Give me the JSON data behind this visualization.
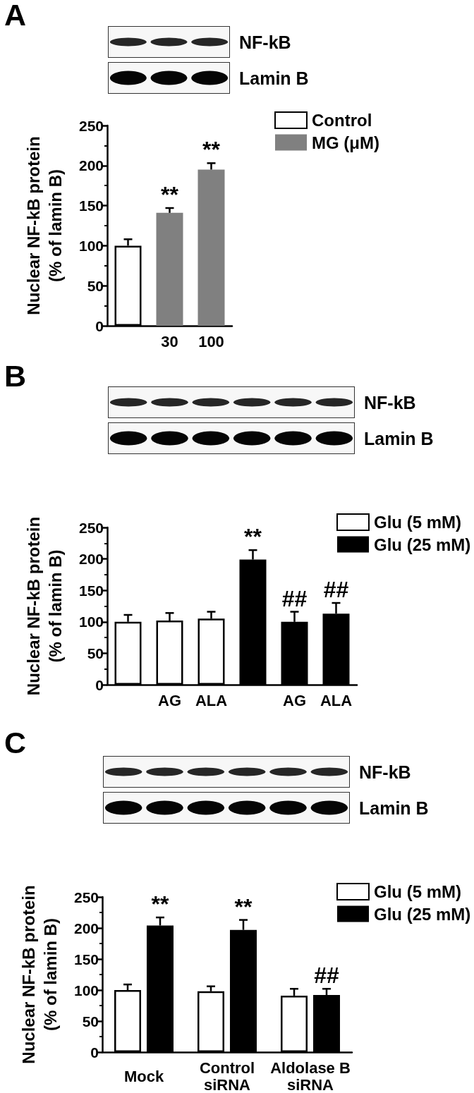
{
  "chart_data": [
    {
      "type": "bar",
      "title": "A",
      "annotations": [
        "NF-kB",
        "Lamin B"
      ],
      "categories": [
        null,
        "30",
        "100"
      ],
      "series": [
        {
          "name": "Control",
          "color": "#ffffff",
          "values": [
            100,
            null,
            null
          ],
          "errors": [
            [
              100,
              108
            ],
            null,
            null
          ]
        },
        {
          "name": "MG (μM)",
          "color": "#808080",
          "values": [
            null,
            141,
            195
          ],
          "errors": [
            null,
            [
              141,
              147
            ],
            [
              195,
              203
            ]
          ],
          "value_labels": [
            null,
            "**",
            "**"
          ]
        }
      ],
      "ylabel": "Nuclear NF-kB protein (% of lamin B)",
      "ylim": [
        0,
        250
      ],
      "yticks": [
        0,
        {
          "value": 25,
          "label": null
        },
        50,
        {
          "value": 75,
          "label": null
        },
        100,
        {
          "value": 125,
          "label": null
        },
        150,
        {
          "value": 175,
          "label": null
        },
        200,
        {
          "value": 225,
          "label": null
        },
        250
      ],
      "legend": "top right",
      "grid": false
    },
    {
      "type": "bar",
      "title": "B",
      "annotations": [
        "NF-kB",
        "Lamin B"
      ],
      "categories": [
        null,
        "AG",
        "ALA",
        null,
        "AG",
        "ALA"
      ],
      "series": [
        {
          "name": "Glu (5 mM)",
          "color": "#ffffff",
          "values": [
            100,
            102,
            105,
            null,
            null,
            null
          ],
          "errors": [
            [
              100,
              111
            ],
            [
              102,
              114
            ],
            [
              105,
              116
            ],
            null,
            null,
            null
          ]
        },
        {
          "name": "Glu (25 mM)",
          "color": "#000000",
          "values": [
            null,
            null,
            null,
            199,
            100,
            113
          ],
          "errors": [
            null,
            null,
            null,
            [
              199,
              214
            ],
            [
              100,
              116
            ],
            [
              113,
              130
            ]
          ],
          "value_labels": [
            null,
            null,
            null,
            "**",
            "##",
            "##"
          ]
        }
      ],
      "ylabel": "Nuclear NF-kB protein (% of lamin B)",
      "ylim": [
        0,
        250
      ],
      "yticks": [
        0,
        {
          "value": 25,
          "label": null
        },
        50,
        {
          "value": 75,
          "label": null
        },
        100,
        {
          "value": 125,
          "label": null
        },
        150,
        {
          "value": 175,
          "label": null
        },
        200,
        {
          "value": 225,
          "label": null
        },
        250
      ],
      "legend": "top right",
      "grid": false
    },
    {
      "type": "bar",
      "title": "C",
      "annotations": [
        "NF-kB",
        "Lamin B"
      ],
      "categories": [
        "Mock",
        "Control siRNA",
        "Aldolase B siRNA"
      ],
      "series": [
        {
          "name": "Glu (5 mM)",
          "color": "#ffffff",
          "values": [
            100,
            98,
            91
          ],
          "errors": [
            [
              100,
              109
            ],
            [
              98,
              106
            ],
            [
              91,
              102
            ]
          ]
        },
        {
          "name": "Glu (25 mM)",
          "color": "#000000",
          "values": [
            204,
            197,
            92
          ],
          "errors": [
            [
              204,
              217
            ],
            [
              197,
              213
            ],
            [
              92,
              102
            ]
          ],
          "value_labels": [
            "**",
            "**",
            "##"
          ]
        }
      ],
      "ylabel": "Nuclear NF-kB protein (% of lamin B)",
      "ylim": [
        0,
        250
      ],
      "yticks": [
        0,
        {
          "value": 25,
          "label": null
        },
        50,
        {
          "value": 75,
          "label": null
        },
        100,
        {
          "value": 125,
          "label": null
        },
        150,
        {
          "value": 175,
          "label": null
        },
        200,
        {
          "value": 225,
          "label": null
        },
        250
      ],
      "legend": "top right",
      "grid": false
    }
  ]
}
